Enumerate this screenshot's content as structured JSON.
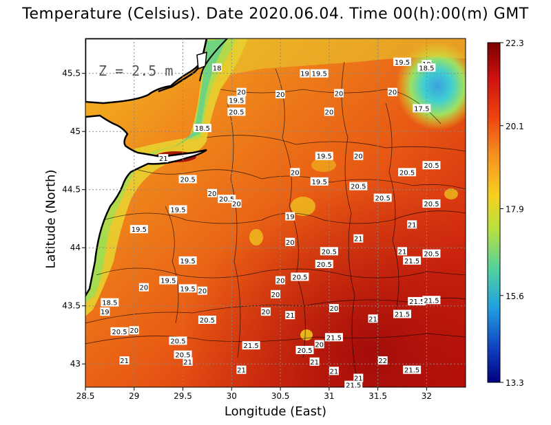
{
  "title": "Temperature (Celsius). Date 2020.06.04. Time 00(h):00(m)  GMT",
  "depth_label": "Z = 2.5 m",
  "xlabel": "Longitude (East)",
  "ylabel": "Latitude (North)",
  "chart_data": {
    "type": "heatmap",
    "title": "Temperature (Celsius). Date 2020.06.04. Time 00(h):00(m)  GMT",
    "xlabel": "Longitude (East)",
    "ylabel": "Latitude (North)",
    "xlim": [
      28.5,
      32.4
    ],
    "ylim": [
      42.8,
      45.8
    ],
    "x_ticks": [
      "28.5",
      "29",
      "29.5",
      "30",
      "30.5",
      "31",
      "31.5",
      "32"
    ],
    "y_ticks": [
      "43",
      "43.5",
      "44",
      "44.5",
      "45",
      "45.5"
    ],
    "colorbar": {
      "min": 13.3,
      "max": 22.3,
      "tick_labels": [
        "22.3",
        "20.1",
        "17.9",
        "15.6",
        "13.3"
      ],
      "colors": [
        "#7a0000",
        "#cc1010",
        "#ee4410",
        "#f59020",
        "#f7d020",
        "#b8e040",
        "#50d0a0",
        "#20a0e0",
        "#1040c0",
        "#000080"
      ]
    },
    "grid": true,
    "contour_labels": [
      {
        "lon": 31.75,
        "lat": 45.6,
        "value": "19.5"
      },
      {
        "lon": 32.0,
        "lat": 45.58,
        "value": "19"
      },
      {
        "lon": 32.0,
        "lat": 45.55,
        "value": "18.5"
      },
      {
        "lon": 29.85,
        "lat": 45.55,
        "value": "18"
      },
      {
        "lon": 30.75,
        "lat": 45.5,
        "value": "19"
      },
      {
        "lon": 30.9,
        "lat": 45.5,
        "value": "19.5"
      },
      {
        "lon": 30.1,
        "lat": 45.34,
        "value": "20"
      },
      {
        "lon": 30.05,
        "lat": 45.27,
        "value": "19.5"
      },
      {
        "lon": 30.5,
        "lat": 45.32,
        "value": "20"
      },
      {
        "lon": 31.1,
        "lat": 45.33,
        "value": "20"
      },
      {
        "lon": 31.65,
        "lat": 45.34,
        "value": "20"
      },
      {
        "lon": 30.05,
        "lat": 45.17,
        "value": "20.5"
      },
      {
        "lon": 31.0,
        "lat": 45.17,
        "value": "20"
      },
      {
        "lon": 31.95,
        "lat": 45.2,
        "value": "17.5"
      },
      {
        "lon": 29.7,
        "lat": 45.03,
        "value": "18.5"
      },
      {
        "lon": 29.3,
        "lat": 44.77,
        "value": "21"
      },
      {
        "lon": 30.95,
        "lat": 44.79,
        "value": "19.5"
      },
      {
        "lon": 31.3,
        "lat": 44.79,
        "value": "20"
      },
      {
        "lon": 32.05,
        "lat": 44.71,
        "value": "20.5"
      },
      {
        "lon": 31.8,
        "lat": 44.65,
        "value": "20.5"
      },
      {
        "lon": 30.65,
        "lat": 44.65,
        "value": "20"
      },
      {
        "lon": 30.9,
        "lat": 44.57,
        "value": "19.5"
      },
      {
        "lon": 29.55,
        "lat": 44.59,
        "value": "20.5"
      },
      {
        "lon": 31.3,
        "lat": 44.53,
        "value": "20.5"
      },
      {
        "lon": 29.8,
        "lat": 44.47,
        "value": "20"
      },
      {
        "lon": 29.95,
        "lat": 44.42,
        "value": "20.5"
      },
      {
        "lon": 30.05,
        "lat": 44.38,
        "value": "20"
      },
      {
        "lon": 31.55,
        "lat": 44.43,
        "value": "20.5"
      },
      {
        "lon": 32.05,
        "lat": 44.38,
        "value": "20.5"
      },
      {
        "lon": 29.45,
        "lat": 44.33,
        "value": "19.5"
      },
      {
        "lon": 30.6,
        "lat": 44.27,
        "value": "19"
      },
      {
        "lon": 31.85,
        "lat": 44.2,
        "value": "21"
      },
      {
        "lon": 29.05,
        "lat": 44.16,
        "value": "19.5"
      },
      {
        "lon": 31.3,
        "lat": 44.08,
        "value": "21"
      },
      {
        "lon": 30.6,
        "lat": 44.05,
        "value": "20"
      },
      {
        "lon": 31.0,
        "lat": 43.97,
        "value": "20.5"
      },
      {
        "lon": 31.75,
        "lat": 43.97,
        "value": "21"
      },
      {
        "lon": 32.05,
        "lat": 43.95,
        "value": "20.5"
      },
      {
        "lon": 29.55,
        "lat": 43.89,
        "value": "19.5"
      },
      {
        "lon": 31.85,
        "lat": 43.89,
        "value": "21.5"
      },
      {
        "lon": 30.95,
        "lat": 43.86,
        "value": "20.5"
      },
      {
        "lon": 30.7,
        "lat": 43.75,
        "value": "20.5"
      },
      {
        "lon": 29.35,
        "lat": 43.72,
        "value": "19.5"
      },
      {
        "lon": 30.5,
        "lat": 43.72,
        "value": "20"
      },
      {
        "lon": 29.1,
        "lat": 43.66,
        "value": "20"
      },
      {
        "lon": 29.55,
        "lat": 43.65,
        "value": "19.5"
      },
      {
        "lon": 29.7,
        "lat": 43.63,
        "value": "20"
      },
      {
        "lon": 30.45,
        "lat": 43.6,
        "value": "20"
      },
      {
        "lon": 31.9,
        "lat": 43.54,
        "value": "21.5"
      },
      {
        "lon": 32.05,
        "lat": 43.55,
        "value": "21.5"
      },
      {
        "lon": 28.75,
        "lat": 43.53,
        "value": "18.5"
      },
      {
        "lon": 28.7,
        "lat": 43.45,
        "value": "19"
      },
      {
        "lon": 31.05,
        "lat": 43.48,
        "value": "20"
      },
      {
        "lon": 30.35,
        "lat": 43.45,
        "value": "20"
      },
      {
        "lon": 30.6,
        "lat": 43.42,
        "value": "21"
      },
      {
        "lon": 31.75,
        "lat": 43.43,
        "value": "21.5"
      },
      {
        "lon": 31.45,
        "lat": 43.39,
        "value": "21"
      },
      {
        "lon": 29.75,
        "lat": 43.38,
        "value": "20.5"
      },
      {
        "lon": 28.85,
        "lat": 43.28,
        "value": "20.5"
      },
      {
        "lon": 29.0,
        "lat": 43.29,
        "value": "20"
      },
      {
        "lon": 31.05,
        "lat": 43.23,
        "value": "21.5"
      },
      {
        "lon": 29.45,
        "lat": 43.2,
        "value": "20.5"
      },
      {
        "lon": 30.9,
        "lat": 43.17,
        "value": "20"
      },
      {
        "lon": 30.2,
        "lat": 43.16,
        "value": "21.5"
      },
      {
        "lon": 30.75,
        "lat": 43.12,
        "value": "20.5"
      },
      {
        "lon": 29.5,
        "lat": 43.08,
        "value": "20.5"
      },
      {
        "lon": 29.55,
        "lat": 43.02,
        "value": "21"
      },
      {
        "lon": 28.9,
        "lat": 43.03,
        "value": "21"
      },
      {
        "lon": 30.85,
        "lat": 43.02,
        "value": "21"
      },
      {
        "lon": 31.55,
        "lat": 43.03,
        "value": "22"
      },
      {
        "lon": 30.1,
        "lat": 42.95,
        "value": "21"
      },
      {
        "lon": 31.05,
        "lat": 42.94,
        "value": "21"
      },
      {
        "lon": 31.85,
        "lat": 42.95,
        "value": "21.5"
      },
      {
        "lon": 31.3,
        "lat": 42.88,
        "value": "21"
      },
      {
        "lon": 31.25,
        "lat": 42.82,
        "value": "21.5"
      }
    ]
  }
}
